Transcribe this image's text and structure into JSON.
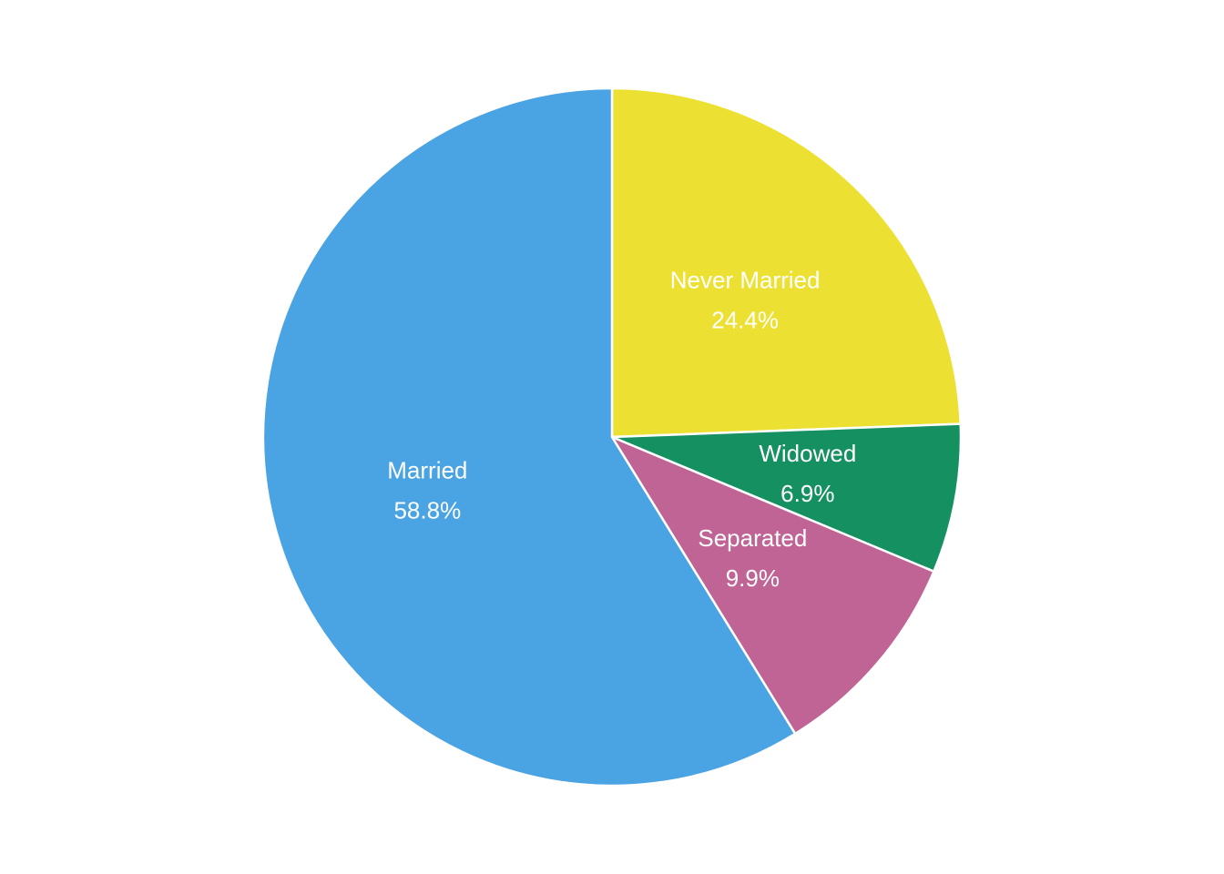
{
  "chart_data": {
    "type": "pie",
    "slices": [
      {
        "label": "Never Married",
        "value": 24.4,
        "value_label": "24.4%",
        "color": "#ECE133"
      },
      {
        "label": "Widowed",
        "value": 6.9,
        "value_label": "6.9%",
        "color": "#159061"
      },
      {
        "label": "Separated",
        "value": 9.9,
        "value_label": "9.9%",
        "color": "#C06495"
      },
      {
        "label": "Married",
        "value": 58.8,
        "value_label": "58.8%",
        "color": "#4AA3E2"
      }
    ],
    "start_angle": "12 o'clock",
    "direction": "clockwise",
    "legend": "none"
  }
}
